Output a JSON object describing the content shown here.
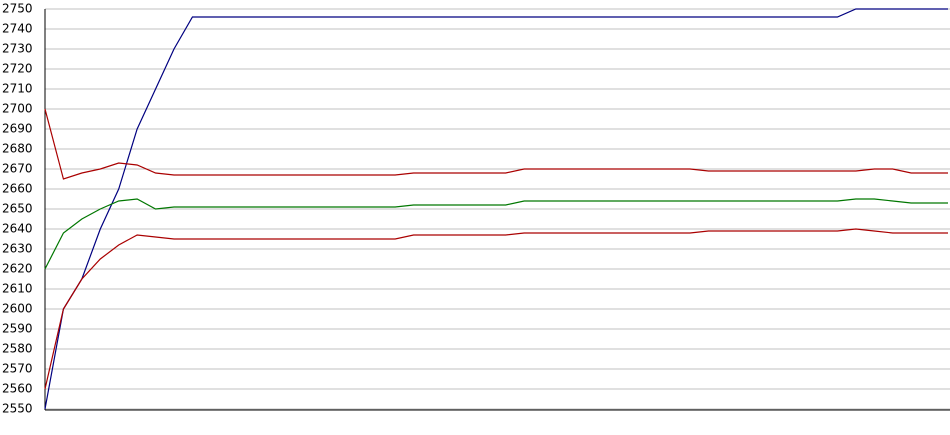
{
  "chart_data": {
    "type": "line",
    "categories": [
      null,
      null,
      null,
      null,
      null,
      null,
      null,
      null,
      null,
      null,
      null,
      null,
      null,
      null,
      null,
      null,
      null,
      null,
      null,
      null,
      null,
      null,
      null,
      null,
      null,
      null,
      null,
      null,
      null,
      null,
      null,
      null,
      null,
      null,
      null,
      null,
      null,
      null,
      null,
      null,
      null,
      null,
      null,
      null,
      null,
      null,
      null,
      null,
      null,
      null
    ],
    "series": [
      {
        "color": "#000080",
        "values": [
          2550,
          2600,
          2615,
          2640,
          2660,
          2690,
          2710,
          2730,
          2746,
          2746,
          2746,
          2746,
          2746,
          2746,
          2746,
          2746,
          2746,
          2746,
          2746,
          2746,
          2746,
          2746,
          2746,
          2746,
          2746,
          2746,
          2746,
          2746,
          2746,
          2746,
          2746,
          2746,
          2746,
          2746,
          2746,
          2746,
          2746,
          2746,
          2746,
          2746,
          2746,
          2746,
          2746,
          2746,
          2750,
          2750,
          2750,
          2750,
          2750,
          2750
        ]
      },
      {
        "color": "#aa0000",
        "values": [
          2700,
          2665,
          2668,
          2670,
          2673,
          2672,
          2668,
          2667,
          2667,
          2667,
          2667,
          2667,
          2667,
          2667,
          2667,
          2667,
          2667,
          2667,
          2667,
          2667,
          2668,
          2668,
          2668,
          2668,
          2668,
          2668,
          2670,
          2670,
          2670,
          2670,
          2670,
          2670,
          2670,
          2670,
          2670,
          2670,
          2669,
          2669,
          2669,
          2669,
          2669,
          2669,
          2669,
          2669,
          2669,
          2670,
          2670,
          2668,
          2668,
          2668
        ]
      },
      {
        "color": "#007700",
        "values": [
          2620,
          2638,
          2645,
          2650,
          2654,
          2655,
          2650,
          2651,
          2651,
          2651,
          2651,
          2651,
          2651,
          2651,
          2651,
          2651,
          2651,
          2651,
          2651,
          2651,
          2652,
          2652,
          2652,
          2652,
          2652,
          2652,
          2654,
          2654,
          2654,
          2654,
          2654,
          2654,
          2654,
          2654,
          2654,
          2654,
          2654,
          2654,
          2654,
          2654,
          2654,
          2654,
          2654,
          2654,
          2655,
          2655,
          2654,
          2653,
          2653,
          2653
        ]
      },
      {
        "color": "#aa0000",
        "values": [
          2560,
          2600,
          2615,
          2625,
          2632,
          2637,
          2636,
          2635,
          2635,
          2635,
          2635,
          2635,
          2635,
          2635,
          2635,
          2635,
          2635,
          2635,
          2635,
          2635,
          2637,
          2637,
          2637,
          2637,
          2637,
          2637,
          2638,
          2638,
          2638,
          2638,
          2638,
          2638,
          2638,
          2638,
          2638,
          2638,
          2639,
          2639,
          2639,
          2639,
          2639,
          2639,
          2639,
          2639,
          2640,
          2639,
          2638,
          2638,
          2638,
          2638
        ]
      }
    ],
    "ylim": [
      2550,
      2750
    ],
    "yticks": [
      2550,
      2560,
      2570,
      2580,
      2590,
      2600,
      2610,
      2620,
      2630,
      2640,
      2650,
      2660,
      2670,
      2680,
      2690,
      2700,
      2710,
      2720,
      2730,
      2740,
      2750
    ],
    "grid": true
  }
}
